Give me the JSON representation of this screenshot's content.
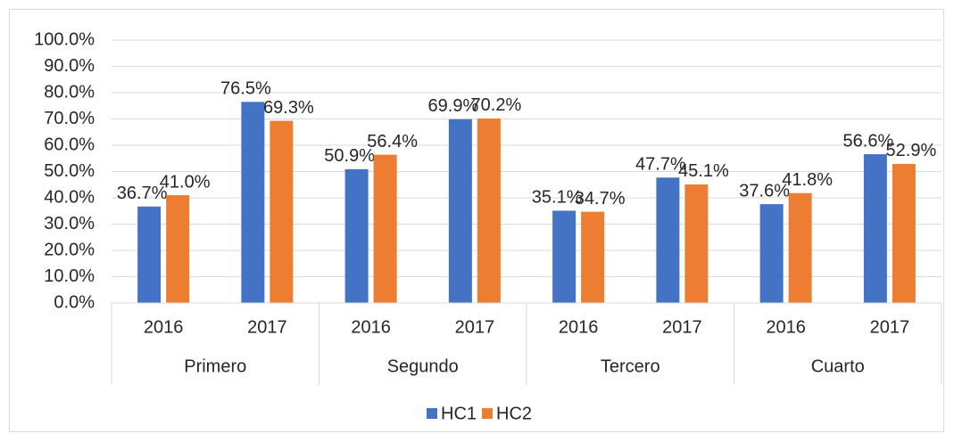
{
  "chart_data": {
    "type": "bar",
    "categories": [
      "2016",
      "2017",
      "2016",
      "2017",
      "2016",
      "2017",
      "2016",
      "2017"
    ],
    "groups": [
      "Primero",
      "Segundo",
      "Tercero",
      "Cuarto"
    ],
    "series": [
      {
        "name": "HC1",
        "color": "#4472c4",
        "values": [
          36.7,
          76.5,
          50.9,
          69.9,
          35.1,
          47.7,
          37.6,
          56.6
        ],
        "value_labels": [
          "36.7%",
          "76.5%",
          "50.9%",
          "69.9%",
          "35.1%",
          "47.7%",
          "37.6%",
          "56.6%"
        ]
      },
      {
        "name": "HC2",
        "color": "#ed7d31",
        "values": [
          41.0,
          69.3,
          56.4,
          70.2,
          34.7,
          45.1,
          41.8,
          52.9
        ],
        "value_labels": [
          "41.0%",
          "69.3%",
          "56.4%",
          "70.2%",
          "34.7%",
          "45.1%",
          "41.8%",
          "52.9%"
        ]
      }
    ],
    "ylim": [
      0,
      100
    ],
    "yticks": [
      {
        "value": 0,
        "label": "0.0%"
      },
      {
        "value": 10,
        "label": "10.0%"
      },
      {
        "value": 20,
        "label": "20.0%"
      },
      {
        "value": 30,
        "label": "30.0%"
      },
      {
        "value": 40,
        "label": "40.0%"
      },
      {
        "value": 50,
        "label": "50.0%"
      },
      {
        "value": 60,
        "label": "60.0%"
      },
      {
        "value": 70,
        "label": "70.0%"
      },
      {
        "value": 80,
        "label": "80.0%"
      },
      {
        "value": 90,
        "label": "90.0%"
      },
      {
        "value": 100,
        "label": "100.0%"
      }
    ],
    "grid": true,
    "legend": "bottom"
  }
}
